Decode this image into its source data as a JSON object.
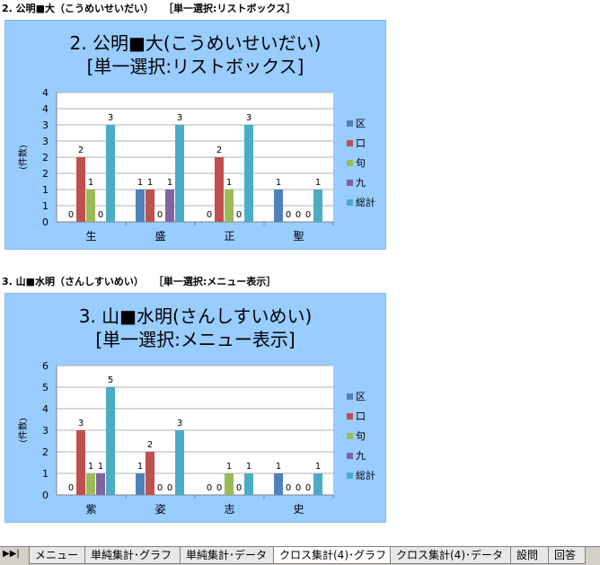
{
  "sections": [
    {
      "header": "2. 公明■大（こうめいせいだい）　　［単一選択:リストボックス］",
      "title_line1": "2. 公明■大(こうめいせいだい)",
      "title_line2": "[単一選択:リストボックス]"
    },
    {
      "header": "3. 山■水明（さんしすいめい）　　［単一選択:メニュー表示］",
      "title_line1": "3. 山■水明(さんしすいめい)",
      "title_line2": "[単一選択:メニュー表示]"
    }
  ],
  "chart_data": [
    {
      "type": "bar",
      "title": "2. 公明■大(こうめいせいだい) [単一選択:リストボックス]",
      "ylabel": "(件数)",
      "ylim": [
        0,
        4
      ],
      "yticks": [
        "0",
        "1",
        "1",
        "2",
        "2",
        "3",
        "3",
        "4",
        "4"
      ],
      "ytick_values": [
        0,
        0.5,
        1,
        1.5,
        2,
        2.5,
        3,
        3.5,
        4
      ],
      "categories": [
        "生",
        "盛",
        "正",
        "聖"
      ],
      "legend_position": "right",
      "grid": true,
      "series": [
        {
          "name": "区",
          "color": "#4f81bd",
          "values": [
            0,
            1,
            0,
            1
          ]
        },
        {
          "name": "口",
          "color": "#c0504d",
          "values": [
            2,
            1,
            2,
            0
          ]
        },
        {
          "name": "句",
          "color": "#9bbb59",
          "values": [
            1,
            0,
            1,
            0
          ]
        },
        {
          "name": "九",
          "color": "#8064a2",
          "values": [
            0,
            1,
            0,
            0
          ]
        },
        {
          "name": "総計",
          "color": "#4bacc6",
          "values": [
            3,
            3,
            3,
            1
          ]
        }
      ]
    },
    {
      "type": "bar",
      "title": "3. 山■水明(さんしすいめい) [単一選択:メニュー表示]",
      "ylabel": "(件数)",
      "ylim": [
        0,
        6
      ],
      "yticks": [
        "0",
        "1",
        "2",
        "3",
        "4",
        "5",
        "6"
      ],
      "ytick_values": [
        0,
        1,
        2,
        3,
        4,
        5,
        6
      ],
      "categories": [
        "紫",
        "姿",
        "志",
        "史"
      ],
      "legend_position": "right",
      "grid": true,
      "series": [
        {
          "name": "区",
          "color": "#4f81bd",
          "values": [
            0,
            1,
            0,
            1
          ]
        },
        {
          "name": "口",
          "color": "#c0504d",
          "values": [
            3,
            2,
            0,
            0
          ]
        },
        {
          "name": "句",
          "color": "#9bbb59",
          "values": [
            1,
            0,
            1,
            0
          ]
        },
        {
          "name": "九",
          "color": "#8064a2",
          "values": [
            1,
            0,
            0,
            0
          ]
        },
        {
          "name": "総計",
          "color": "#4bacc6",
          "values": [
            5,
            3,
            1,
            1
          ]
        }
      ]
    }
  ],
  "tabs": {
    "nav_glyph": "▶▶|",
    "items": [
      {
        "label": "メニュー",
        "active": false
      },
      {
        "label": "単純集計･グラフ",
        "active": false
      },
      {
        "label": "単純集計･データ",
        "active": false
      },
      {
        "label": "クロス集計(4)･グラフ",
        "active": true
      },
      {
        "label": "クロス集計(4)･データ",
        "active": false
      },
      {
        "label": "設問",
        "active": false
      },
      {
        "label": "回答",
        "active": false
      }
    ]
  }
}
